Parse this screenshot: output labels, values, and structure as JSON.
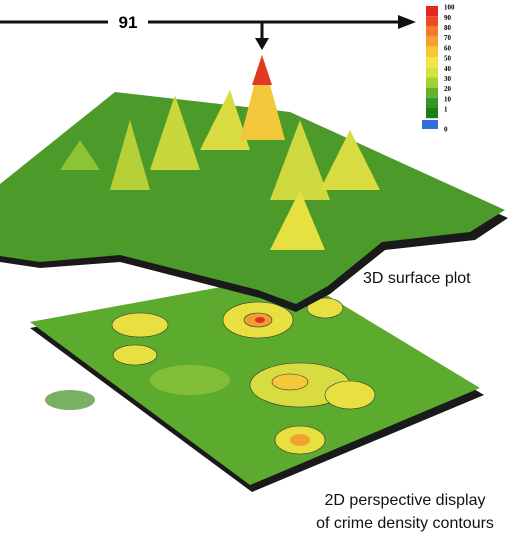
{
  "callout": {
    "label": "91"
  },
  "legend": {
    "items": [
      {
        "label": "100",
        "color": "#e02a1e"
      },
      {
        "label": "90",
        "color": "#ee4a22"
      },
      {
        "label": "80",
        "color": "#f27a2c"
      },
      {
        "label": "70",
        "color": "#f5a232"
      },
      {
        "label": "60",
        "color": "#f8c63a"
      },
      {
        "label": "50",
        "color": "#f6e642"
      },
      {
        "label": "40",
        "color": "#d6e042"
      },
      {
        "label": "30",
        "color": "#a6cf34"
      },
      {
        "label": "20",
        "color": "#62b230"
      },
      {
        "label": "10",
        "color": "#349424"
      },
      {
        "label": "1",
        "color": "#1f7a18"
      },
      {
        "label": "0",
        "color": "#2f6fe0"
      }
    ]
  },
  "captions": {
    "surface": "3D surface plot",
    "contours": [
      "2D perspective display",
      "of crime density contours"
    ]
  }
}
